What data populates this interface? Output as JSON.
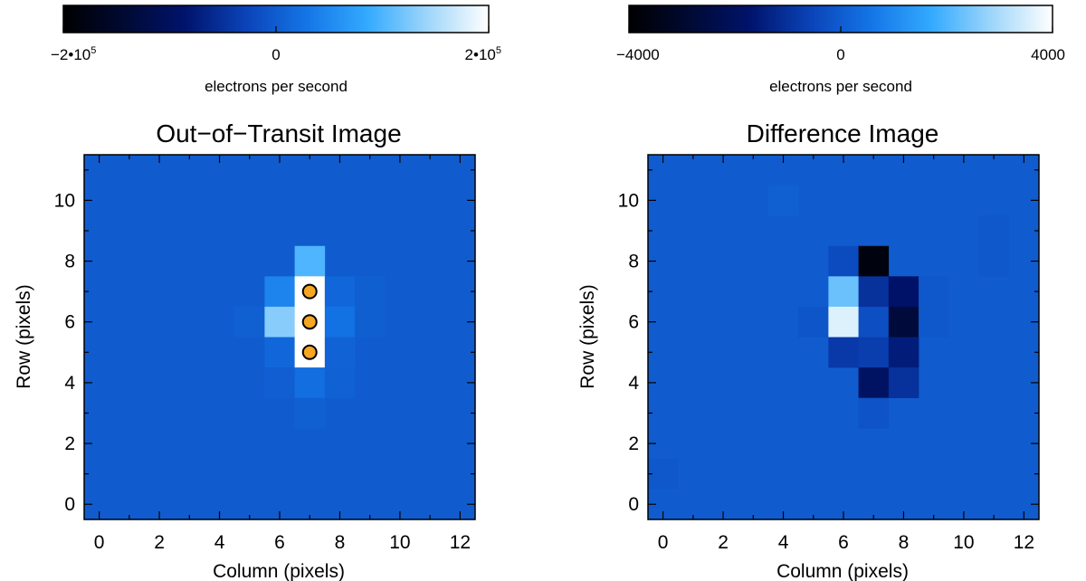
{
  "chart_data": [
    {
      "type": "heatmap",
      "title": "Out−of−Transit Image",
      "xlabel": "Column (pixels)",
      "ylabel": "Row (pixels)",
      "xlim": [
        -0.5,
        12.5
      ],
      "ylim": [
        -0.5,
        11.5
      ],
      "x_ticks": [
        0,
        2,
        4,
        6,
        8,
        10,
        12
      ],
      "y_ticks": [
        0,
        2,
        4,
        6,
        8,
        10
      ],
      "colorbar": {
        "label": "electrons per second",
        "range": [
          -200000,
          200000
        ],
        "tick_labels": [
          {
            "value": -200000,
            "base": "−2•10",
            "exp": "5"
          },
          {
            "value": 0,
            "base": "0",
            "exp": ""
          },
          {
            "value": 200000,
            "base": "2•10",
            "exp": "5"
          }
        ]
      },
      "colormap": [
        "#000000",
        "#000a33",
        "#00136b",
        "#0b43b8",
        "#1475e6",
        "#33aaff",
        "#9fd6fa",
        "#ffffff"
      ],
      "background_value": 0,
      "cells": [
        {
          "col": 7,
          "row": 8,
          "value": 100000
        },
        {
          "col": 6,
          "row": 7,
          "value": 45000
        },
        {
          "col": 7,
          "row": 7,
          "value": 200000
        },
        {
          "col": 8,
          "row": 7,
          "value": 12000
        },
        {
          "col": 9,
          "row": 7,
          "value": 3000
        },
        {
          "col": 5,
          "row": 6,
          "value": 4000
        },
        {
          "col": 6,
          "row": 6,
          "value": 130000
        },
        {
          "col": 7,
          "row": 6,
          "value": 200000
        },
        {
          "col": 8,
          "row": 6,
          "value": 25000
        },
        {
          "col": 9,
          "row": 6,
          "value": 3000
        },
        {
          "col": 6,
          "row": 5,
          "value": 12000
        },
        {
          "col": 7,
          "row": 5,
          "value": 200000
        },
        {
          "col": 8,
          "row": 5,
          "value": 8000
        },
        {
          "col": 6,
          "row": 4,
          "value": 2000
        },
        {
          "col": 7,
          "row": 4,
          "value": 20000
        },
        {
          "col": 8,
          "row": 4,
          "value": 6000
        },
        {
          "col": 7,
          "row": 3,
          "value": 4000
        }
      ],
      "markers": [
        {
          "x": 7,
          "y": 7
        },
        {
          "x": 7,
          "y": 6
        },
        {
          "x": 7,
          "y": 5
        }
      ],
      "marker_color": "#f5a623"
    },
    {
      "type": "heatmap",
      "title": "Difference Image",
      "xlabel": "Column (pixels)",
      "ylabel": "Row (pixels)",
      "xlim": [
        -0.5,
        12.5
      ],
      "ylim": [
        -0.5,
        11.5
      ],
      "x_ticks": [
        0,
        2,
        4,
        6,
        8,
        10,
        12
      ],
      "y_ticks": [
        0,
        2,
        4,
        6,
        8,
        10
      ],
      "colorbar": {
        "label": "electrons per second",
        "range": [
          -4000,
          4000
        ],
        "tick_labels": [
          {
            "value": -4000,
            "base": "−4000",
            "exp": ""
          },
          {
            "value": 0,
            "base": "0",
            "exp": ""
          },
          {
            "value": 4000,
            "base": "4000",
            "exp": ""
          }
        ]
      },
      "colormap": [
        "#000000",
        "#000a33",
        "#00136b",
        "#0b43b8",
        "#1475e6",
        "#33aaff",
        "#9fd6fa",
        "#ffffff"
      ],
      "background_value": 0,
      "cells": [
        {
          "col": 6,
          "row": 8,
          "value": -400
        },
        {
          "col": 7,
          "row": 8,
          "value": -3700
        },
        {
          "col": 6,
          "row": 7,
          "value": 2300
        },
        {
          "col": 7,
          "row": 7,
          "value": -1000
        },
        {
          "col": 8,
          "row": 7,
          "value": -1800
        },
        {
          "col": 9,
          "row": 7,
          "value": -100
        },
        {
          "col": 5,
          "row": 6,
          "value": -150
        },
        {
          "col": 6,
          "row": 6,
          "value": 3600
        },
        {
          "col": 7,
          "row": 6,
          "value": -300
        },
        {
          "col": 8,
          "row": 6,
          "value": -2700
        },
        {
          "col": 9,
          "row": 6,
          "value": -100
        },
        {
          "col": 6,
          "row": 5,
          "value": -800
        },
        {
          "col": 7,
          "row": 5,
          "value": -700
        },
        {
          "col": 8,
          "row": 5,
          "value": -1500
        },
        {
          "col": 7,
          "row": 4,
          "value": -1900
        },
        {
          "col": 8,
          "row": 4,
          "value": -1000
        },
        {
          "col": 7,
          "row": 3,
          "value": -200
        },
        {
          "col": 11,
          "row": 8,
          "value": -100
        },
        {
          "col": 11,
          "row": 9,
          "value": -100
        },
        {
          "col": 0,
          "row": 1,
          "value": -80
        },
        {
          "col": 4,
          "row": 10,
          "value": 80
        }
      ],
      "markers": [],
      "marker_color": "#f5a623"
    }
  ]
}
